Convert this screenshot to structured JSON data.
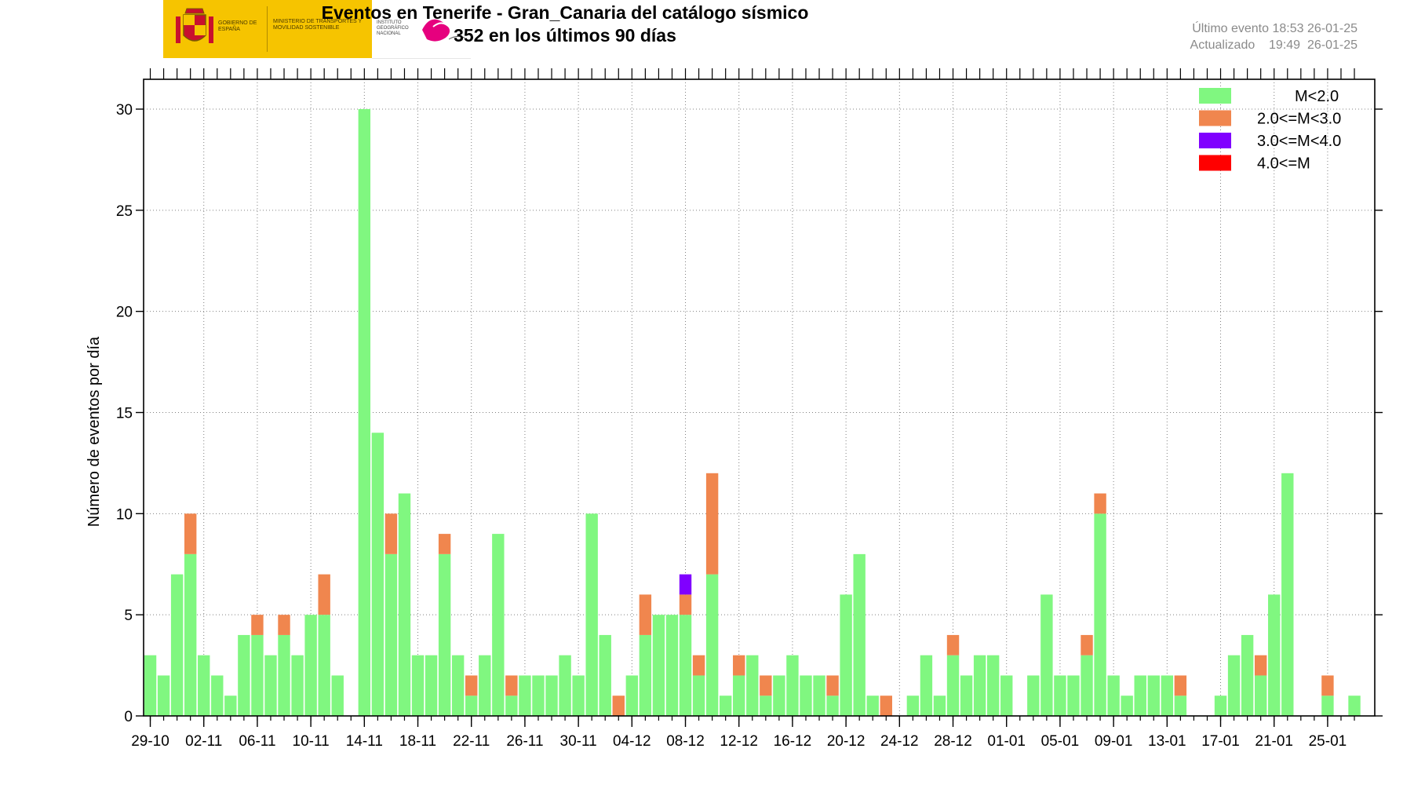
{
  "header": {
    "title_line1": "Eventos en Tenerife - Gran_Canaria del catálogo sísmico",
    "title_line2": "352 en los últimos 90 días",
    "last_event": "Último evento 18:53 26-01-25",
    "updated": "Actualizado    19:49  26-01-25"
  },
  "logos": {
    "gobierno": "GOBIERNO DE ESPAÑA",
    "ministerio": "MINISTERIO DE TRANSPORTES Y MOVILIDAD SOSTENIBLE",
    "instituto": "INSTITUTO GEOGRÁFICO NACIONAL"
  },
  "colors": {
    "m_lt2": "#80f780",
    "m_2_3": "#f0864e",
    "m_3_4": "#8000ff",
    "m_ge4": "#ff0000"
  },
  "chart_data": {
    "type": "bar",
    "stacked": true,
    "ylabel": "Número de eventos por día",
    "ylim": [
      0,
      31.5
    ],
    "yticks": [
      0,
      5,
      10,
      15,
      20,
      25,
      30
    ],
    "grid": true,
    "legend_position": "top-right",
    "start_date": "29-10",
    "xtick_labels": [
      "29-10",
      "02-11",
      "06-11",
      "10-11",
      "14-11",
      "18-11",
      "22-11",
      "26-11",
      "30-11",
      "04-12",
      "08-12",
      "12-12",
      "16-12",
      "20-12",
      "24-12",
      "28-12",
      "01-01",
      "05-01",
      "09-01",
      "13-01",
      "17-01",
      "21-01",
      "25-01"
    ],
    "series": [
      {
        "name": "M<2.0",
        "color": "#80f780",
        "values": [
          3,
          2,
          7,
          8,
          3,
          2,
          1,
          4,
          4,
          3,
          4,
          3,
          5,
          5,
          2,
          0,
          30,
          14,
          8,
          11,
          3,
          3,
          8,
          3,
          1,
          3,
          9,
          1,
          2,
          2,
          2,
          3,
          2,
          10,
          4,
          0,
          2,
          4,
          5,
          5,
          5,
          2,
          7,
          1,
          2,
          3,
          1,
          2,
          3,
          2,
          2,
          1,
          6,
          8,
          1,
          0,
          0,
          1,
          3,
          1,
          3,
          2,
          3,
          3,
          2,
          0,
          2,
          6,
          2,
          2,
          3,
          10,
          2,
          1,
          2,
          2,
          2,
          1,
          0,
          0,
          1,
          3,
          4,
          2,
          6,
          12,
          0,
          0,
          1,
          0,
          1
        ]
      },
      {
        "name": "2.0<=M<3.0",
        "color": "#f0864e",
        "values": [
          0,
          0,
          0,
          2,
          0,
          0,
          0,
          0,
          1,
          0,
          1,
          0,
          0,
          2,
          0,
          0,
          0,
          0,
          2,
          0,
          0,
          0,
          1,
          0,
          1,
          0,
          0,
          1,
          0,
          0,
          0,
          0,
          0,
          0,
          0,
          1,
          0,
          2,
          0,
          0,
          1,
          1,
          5,
          0,
          1,
          0,
          1,
          0,
          0,
          0,
          0,
          1,
          0,
          0,
          0,
          1,
          0,
          0,
          0,
          0,
          1,
          0,
          0,
          0,
          0,
          0,
          0,
          0,
          0,
          0,
          1,
          1,
          0,
          0,
          0,
          0,
          0,
          1,
          0,
          0,
          0,
          0,
          0,
          1,
          0,
          0,
          0,
          0,
          1,
          0,
          0
        ]
      },
      {
        "name": "3.0<=M<4.0",
        "color": "#8000ff",
        "values": [
          0,
          0,
          0,
          0,
          0,
          0,
          0,
          0,
          0,
          0,
          0,
          0,
          0,
          0,
          0,
          0,
          0,
          0,
          0,
          0,
          0,
          0,
          0,
          0,
          0,
          0,
          0,
          0,
          0,
          0,
          0,
          0,
          0,
          0,
          0,
          0,
          0,
          0,
          0,
          0,
          1,
          0,
          0,
          0,
          0,
          0,
          0,
          0,
          0,
          0,
          0,
          0,
          0,
          0,
          0,
          0,
          0,
          0,
          0,
          0,
          0,
          0,
          0,
          0,
          0,
          0,
          0,
          0,
          0,
          0,
          0,
          0,
          0,
          0,
          0,
          0,
          0,
          0,
          0,
          0,
          0,
          0,
          0,
          0,
          0,
          0,
          0,
          0,
          0,
          0,
          0
        ]
      },
      {
        "name": "4.0<=M",
        "color": "#ff0000",
        "values": [
          0,
          0,
          0,
          0,
          0,
          0,
          0,
          0,
          0,
          0,
          0,
          0,
          0,
          0,
          0,
          0,
          0,
          0,
          0,
          0,
          0,
          0,
          0,
          0,
          0,
          0,
          0,
          0,
          0,
          0,
          0,
          0,
          0,
          0,
          0,
          0,
          0,
          0,
          0,
          0,
          0,
          0,
          0,
          0,
          0,
          0,
          0,
          0,
          0,
          0,
          0,
          0,
          0,
          0,
          0,
          0,
          0,
          0,
          0,
          0,
          0,
          0,
          0,
          0,
          0,
          0,
          0,
          0,
          0,
          0,
          0,
          0,
          0,
          0,
          0,
          0,
          0,
          0,
          0,
          0,
          0,
          0,
          0,
          0,
          0,
          0,
          0,
          0,
          0,
          0,
          0
        ]
      }
    ]
  }
}
